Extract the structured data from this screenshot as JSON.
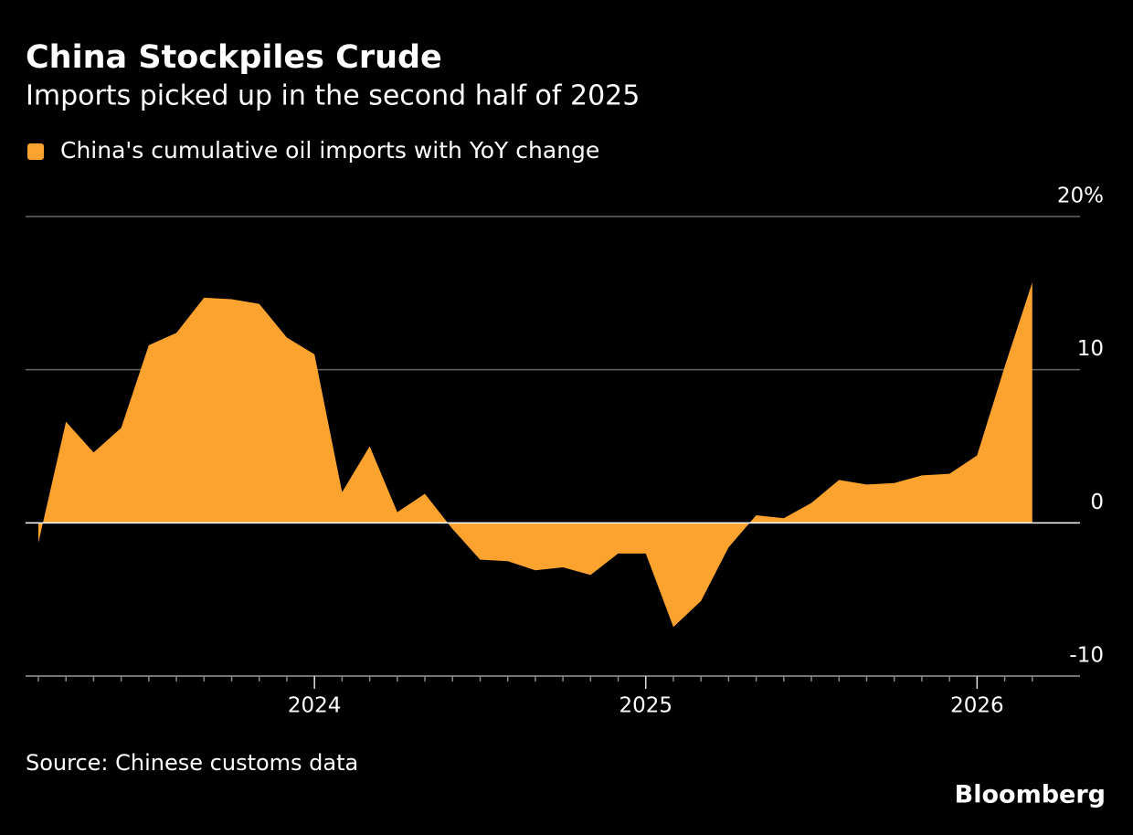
{
  "chart_data": {
    "type": "area",
    "title": "China Stockpiles Crude",
    "subtitle": "Imports picked up in the second half of 2025",
    "source": "Source: Chinese customs data",
    "brand": "Bloomberg",
    "x": [
      "2023-03",
      "2023-04",
      "2023-05",
      "2023-06",
      "2023-07",
      "2023-08",
      "2023-09",
      "2023-10",
      "2023-11",
      "2023-12",
      "2024-01",
      "2024-02",
      "2024-03",
      "2024-04",
      "2024-05",
      "2024-06",
      "2024-07",
      "2024-08",
      "2024-09",
      "2024-10",
      "2024-11",
      "2024-12",
      "2025-01",
      "2025-02",
      "2025-03",
      "2025-04",
      "2025-05",
      "2025-06",
      "2025-07",
      "2025-08",
      "2025-09",
      "2025-10",
      "2025-11",
      "2025-12",
      "2026-01",
      "2026-02",
      "2026-03"
    ],
    "series": [
      {
        "name": "China's cumulative oil imports with YoY change",
        "color": "#fca32f",
        "values": [
          -1.3,
          6.6,
          4.6,
          6.2,
          11.6,
          12.4,
          14.7,
          14.6,
          14.3,
          12.1,
          11.0,
          2.0,
          5.0,
          0.7,
          1.9,
          -0.4,
          -2.4,
          -2.5,
          -3.1,
          -2.9,
          -3.4,
          -2.0,
          -2.0,
          -6.8,
          -5.1,
          -1.6,
          0.5,
          0.3,
          1.3,
          2.8,
          2.5,
          2.6,
          3.1,
          3.2,
          4.4,
          10.2,
          15.7
        ]
      }
    ],
    "xlim": [
      "2023-03",
      "2026-04"
    ],
    "xticks": [
      {
        "value": "2024-01",
        "label": "2024"
      },
      {
        "value": "2025-01",
        "label": "2025"
      },
      {
        "value": "2026-01",
        "label": "2026"
      }
    ],
    "ylim": [
      -10,
      20
    ],
    "yticks": [
      {
        "value": 20,
        "label": "20%"
      },
      10,
      0,
      -10
    ],
    "grid": true
  }
}
